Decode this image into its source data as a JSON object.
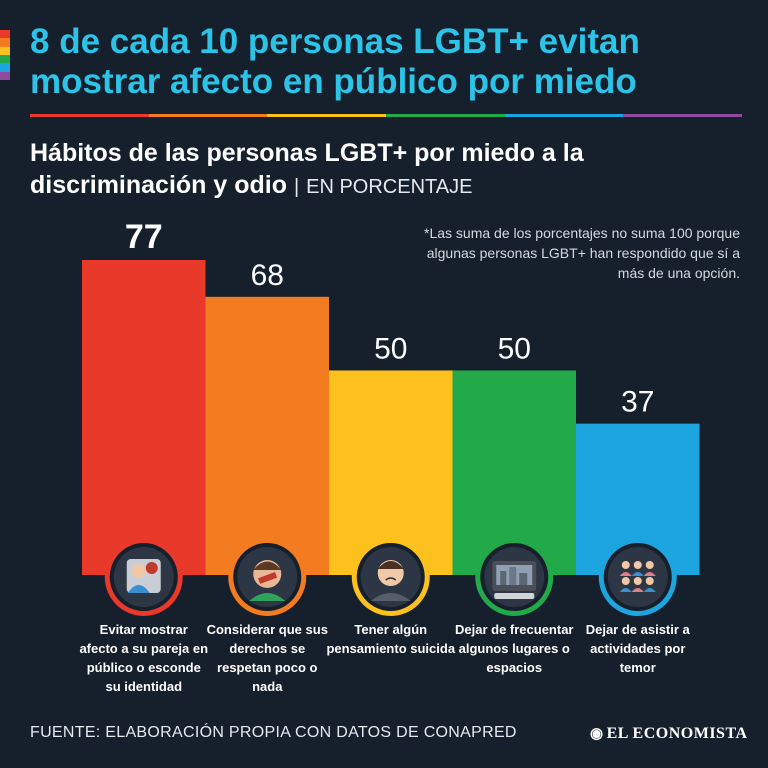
{
  "headline": "8 de cada 10 personas LGBT+ evitan mostrar afecto en público por miedo",
  "subtitle": "Hábitos de las personas LGBT+ por miedo a la discriminación y odio",
  "unit_label": "EN PORCENTAJE",
  "note": "*Las suma de los porcentajes no suma 100 porque algunas personas LGBT+ han respondido que sí a más de una opción.",
  "source": "FUENTE: ELABORACIÓN PROPIA CON DATOS DE CONAPRED",
  "brand": "EL ECONOMISTA",
  "colors": {
    "background": "#16202d",
    "title": "#2bc4e8",
    "rainbow": [
      "#e8392b",
      "#f47c20",
      "#fcc11c",
      "#22a94a",
      "#1da5e0",
      "#8e4b9e"
    ]
  },
  "chart_data": {
    "type": "bar",
    "title": "Hábitos de las personas LGBT+ por miedo a la discriminación y odio",
    "ylabel": "Porcentaje",
    "ylim": [
      0,
      77
    ],
    "grid": false,
    "legend": "none",
    "categories": [
      "Evitar mostrar afecto a su pareja en público o esconde su identidad",
      "Considerar que sus derechos se respetan poco o nada",
      "Tener algún pensamiento suicida",
      "Dejar de frecuentar algunos lugares o espacios",
      "Dejar de asistir a actividades por temor"
    ],
    "values": [
      77,
      68,
      50,
      50,
      37
    ],
    "value_labels": [
      "77",
      "68",
      "50",
      "50",
      "37"
    ],
    "bar_colors": [
      "#e8392b",
      "#f47c20",
      "#fcc11c",
      "#22a94a",
      "#1da5e0"
    ],
    "icons": [
      "couple-icon",
      "silenced-person-icon",
      "sad-person-icon",
      "cityscape-icon",
      "group-icon"
    ]
  }
}
